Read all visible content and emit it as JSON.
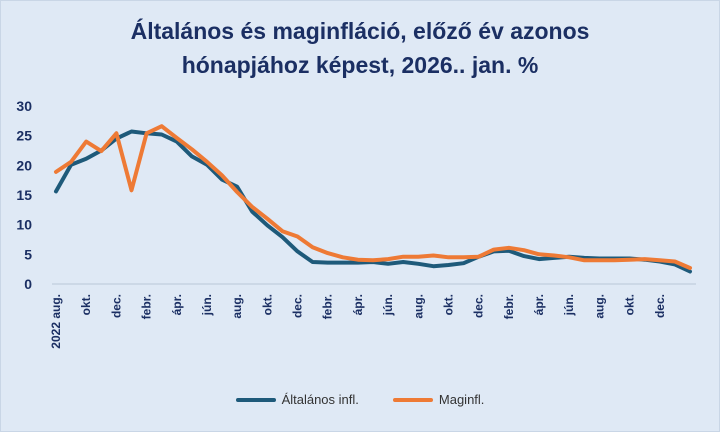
{
  "chart_data": {
    "type": "line",
    "title_line1": "Általános és maginfláció, előző év azonos",
    "title_line2": "hónapjához képest, 2026.. jan. %",
    "ylim": [
      0,
      30
    ],
    "yticks": [
      "0",
      "5",
      "10",
      "15",
      "20",
      "25",
      "30"
    ],
    "xtick_labels": [
      "2022 aug.",
      "okt.",
      "dec.",
      "febr.",
      "ápr.",
      "jún.",
      "aug.",
      "okt.",
      "dec.",
      "febr.",
      "ápr.",
      "jún.",
      "aug.",
      "okt.",
      "dec.",
      "febr.",
      "ápr.",
      "jún.",
      "aug.",
      "okt.",
      "dec."
    ],
    "series": [
      {
        "name": "Általános infl.",
        "color": "#1e5a7a",
        "values": [
          15.6,
          20.1,
          21.1,
          22.5,
          24.5,
          25.7,
          25.4,
          25.2,
          24.0,
          21.5,
          20.1,
          17.6,
          16.4,
          12.2,
          9.9,
          7.9,
          5.5,
          3.7,
          3.6,
          3.6,
          3.6,
          3.7,
          3.4,
          3.7,
          3.4,
          3.0,
          3.2,
          3.5,
          4.6,
          5.5,
          5.6,
          4.7,
          4.2,
          4.4,
          4.6,
          4.4,
          4.3,
          4.3,
          4.3,
          4.1,
          3.8,
          3.3,
          2.1
        ]
      },
      {
        "name": "Maginfl.",
        "color": "#ee7a35",
        "values": [
          18.9,
          20.6,
          24.0,
          22.4,
          25.4,
          15.8,
          25.4,
          26.6,
          24.6,
          22.7,
          20.6,
          18.3,
          15.5,
          13.0,
          11.0,
          8.9,
          8.0,
          6.2,
          5.2,
          4.5,
          4.1,
          4.0,
          4.2,
          4.6,
          4.6,
          4.8,
          4.5,
          4.5,
          4.6,
          5.8,
          6.1,
          5.7,
          5.0,
          4.8,
          4.5,
          4.0,
          4.0,
          4.0,
          4.1,
          4.2,
          4.0,
          3.8,
          2.7
        ]
      }
    ]
  }
}
